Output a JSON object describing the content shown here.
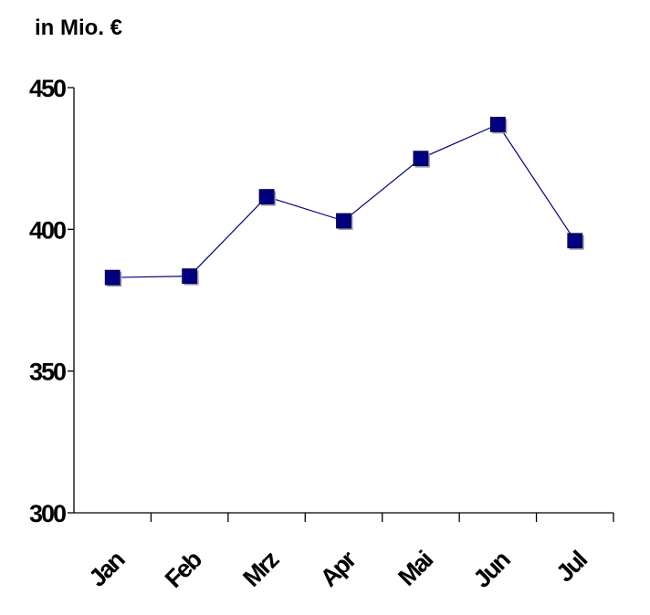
{
  "chart_data": {
    "type": "line",
    "unit_label": "in Mio. €",
    "categories": [
      "Jan",
      "Feb",
      "Mrz",
      "Apr",
      "Mai",
      "Jun",
      "Jul"
    ],
    "series": [
      {
        "values": [
          383,
          383.5,
          411.5,
          403,
          425,
          437,
          396
        ],
        "color": "#000080",
        "marker": "square"
      }
    ],
    "y_ticks": [
      "300",
      "350",
      "400",
      "450"
    ],
    "ylim": [
      300,
      450
    ],
    "grid": false,
    "legend": "none"
  }
}
